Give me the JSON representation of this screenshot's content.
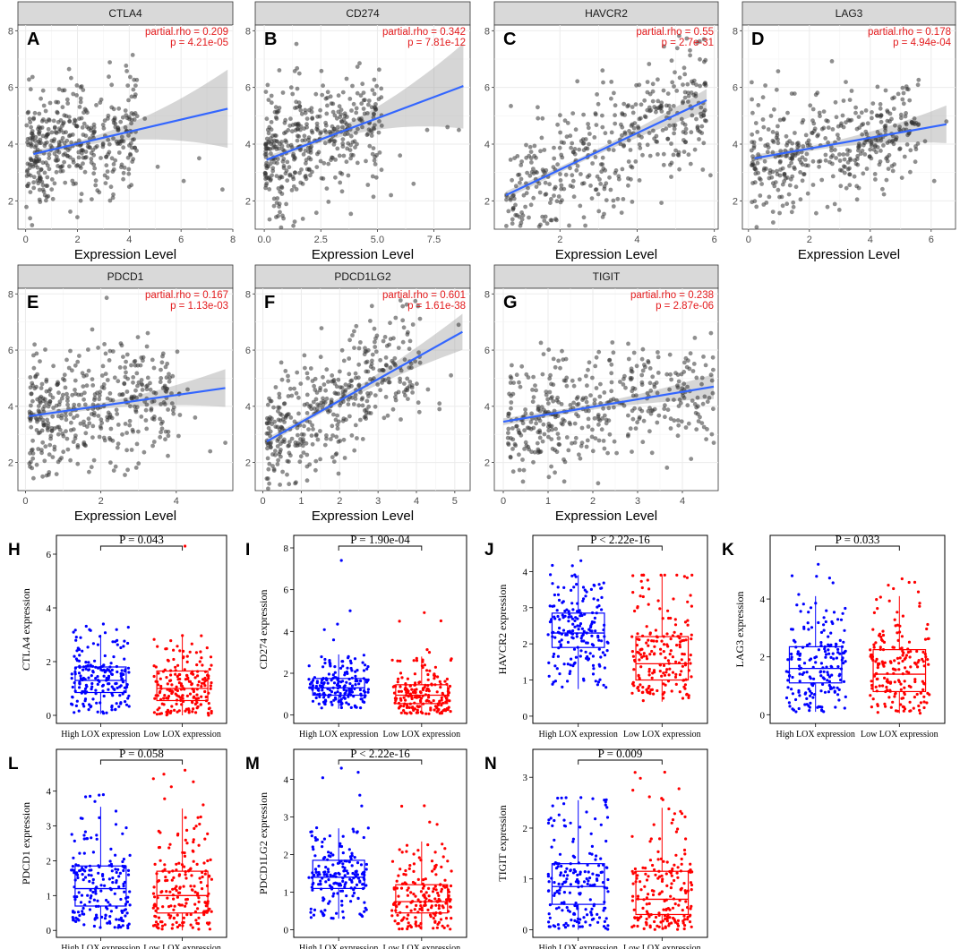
{
  "scatter_layout": {
    "x_axis_label": "Expression Level",
    "y_ticks": [
      2,
      4,
      6,
      8
    ],
    "y_range": [
      1,
      8.2
    ]
  },
  "box_layout": {
    "categories": [
      "High LOX expression",
      "Low LOX expression"
    ],
    "colors": {
      "high": "#0000ff",
      "low": "#ff0000",
      "fit": "#3366ff",
      "stat": "#e31a1c"
    }
  },
  "chart_data": [
    {
      "type": "scatter",
      "letter": "A",
      "gene": "CTLA4",
      "rho_text": "partial.rho = 0.209",
      "p_text": "p = 4.21e-05",
      "xticks": [
        0,
        2,
        4,
        6,
        8
      ],
      "xlim": [
        -0.3,
        8.0
      ],
      "fit": [
        [
          0.3,
          3.65
        ],
        [
          7.8,
          5.25
        ]
      ],
      "data_xmax": 4.3,
      "outliers": [
        [
          5.1,
          3.2
        ],
        [
          6.1,
          2.7
        ],
        [
          6.7,
          3.5
        ],
        [
          7.6,
          2.4
        ],
        [
          4.6,
          4.9
        ]
      ]
    },
    {
      "type": "scatter",
      "letter": "B",
      "gene": "CD274",
      "rho_text": "partial.rho = 0.342",
      "p_text": "p = 7.81e-12",
      "xticks": [
        0.0,
        2.5,
        5.0,
        7.5
      ],
      "xticklabels": [
        "0.0",
        "2.5",
        "5.0",
        "7.5"
      ],
      "xlim": [
        -0.4,
        9.1
      ],
      "fit": [
        [
          0.1,
          3.45
        ],
        [
          8.8,
          6.05
        ]
      ],
      "data_xmax": 5.2,
      "outliers": [
        [
          6.0,
          3.6
        ],
        [
          6.6,
          2.6
        ],
        [
          7.2,
          4.5
        ],
        [
          8.1,
          4.6
        ],
        [
          8.6,
          4.5
        ],
        [
          5.6,
          2.2
        ]
      ]
    },
    {
      "type": "scatter",
      "letter": "C",
      "gene": "HAVCR2",
      "rho_text": "partial.rho = 0.55",
      "p_text": "p = 2.7e-31",
      "xticks": [
        2,
        4,
        6
      ],
      "xlim": [
        0.3,
        6.1
      ],
      "fit": [
        [
          0.6,
          2.2
        ],
        [
          5.8,
          5.55
        ]
      ],
      "data_xmax": 5.8,
      "outliers": [
        [
          5.9,
          2.9
        ],
        [
          5.7,
          3.1
        ]
      ]
    },
    {
      "type": "scatter",
      "letter": "D",
      "gene": "LAG3",
      "rho_text": "partial.rho = 0.178",
      "p_text": "p = 4.94e-04",
      "xticks": [
        0,
        2,
        4,
        6
      ],
      "xlim": [
        -0.2,
        6.8
      ],
      "fit": [
        [
          0.2,
          3.5
        ],
        [
          6.5,
          4.7
        ]
      ],
      "data_xmax": 5.5,
      "outliers": [
        [
          6.1,
          2.7
        ],
        [
          5.8,
          4.1
        ],
        [
          6.5,
          4.8
        ]
      ]
    },
    {
      "type": "scatter",
      "letter": "E",
      "gene": "PDCD1",
      "rho_text": "partial.rho = 0.167",
      "p_text": "p = 1.13e-03",
      "xticks": [
        0,
        2,
        4
      ],
      "xlim": [
        -0.2,
        5.5
      ],
      "fit": [
        [
          0.1,
          3.65
        ],
        [
          5.3,
          4.65
        ]
      ],
      "data_xmax": 4.0,
      "outliers": [
        [
          4.5,
          3.6
        ],
        [
          4.9,
          2.4
        ],
        [
          5.3,
          2.7
        ],
        [
          4.3,
          4.6
        ]
      ]
    },
    {
      "type": "scatter",
      "letter": "F",
      "gene": "PDCD1LG2",
      "rho_text": "partial.rho = 0.601",
      "p_text": "p = 1.61e-38",
      "xticks": [
        0,
        1,
        2,
        3,
        4,
        5
      ],
      "xlim": [
        -0.2,
        5.4
      ],
      "fit": [
        [
          0.1,
          2.75
        ],
        [
          5.2,
          6.65
        ]
      ],
      "data_xmax": 4.0,
      "outliers": [
        [
          4.3,
          4.6
        ],
        [
          4.6,
          4.1
        ],
        [
          4.9,
          5.1
        ],
        [
          5.1,
          6.9
        ],
        [
          4.6,
          3.9
        ]
      ]
    },
    {
      "type": "scatter",
      "letter": "G",
      "gene": "TIGIT",
      "rho_text": "partial.rho = 0.238",
      "p_text": "p = 2.87e-06",
      "xticks": [
        0,
        1,
        2,
        3,
        4
      ],
      "xlim": [
        -0.2,
        4.8
      ],
      "fit": [
        [
          0.0,
          3.45
        ],
        [
          4.7,
          4.7
        ]
      ],
      "data_xmax": 4.6,
      "outliers": [
        [
          4.7,
          2.7
        ],
        [
          4.6,
          4.3
        ]
      ]
    },
    {
      "type": "box",
      "letter": "H",
      "ylabel": "CTLA4 expression",
      "p_text": "P = 0.043",
      "yticks": [
        0,
        2,
        4,
        6
      ],
      "ylim": [
        -0.3,
        6.7
      ],
      "high": {
        "q1": 0.85,
        "median": 1.3,
        "q3": 1.8,
        "lo": 0.05,
        "hi": 3.0,
        "max": 3.4
      },
      "low": {
        "q1": 0.55,
        "median": 1.0,
        "q3": 1.65,
        "lo": 0.0,
        "hi": 3.0,
        "max": 6.3
      }
    },
    {
      "type": "box",
      "letter": "I",
      "ylabel": "CD274 expression",
      "p_text": "P = 1.90e-04",
      "yticks": [
        0,
        2,
        4,
        6,
        8
      ],
      "ylim": [
        -0.4,
        8.6
      ],
      "high": {
        "q1": 0.95,
        "median": 1.3,
        "q3": 1.75,
        "lo": 0.3,
        "hi": 2.9,
        "max": 7.4
      },
      "low": {
        "q1": 0.55,
        "median": 0.95,
        "q3": 1.45,
        "lo": 0.05,
        "hi": 2.8,
        "max": 4.9
      }
    },
    {
      "type": "box",
      "letter": "J",
      "ylabel": "HAVCR2 expression",
      "p_text": "P < 2.22e-16",
      "yticks": [
        0,
        1,
        2,
        3,
        4
      ],
      "ylim": [
        -0.2,
        5.0
      ],
      "high": {
        "q1": 1.9,
        "median": 2.3,
        "q3": 2.85,
        "lo": 0.75,
        "hi": 3.9,
        "max": 4.3
      },
      "low": {
        "q1": 1.0,
        "median": 1.45,
        "q3": 2.2,
        "lo": 0.4,
        "hi": 3.9,
        "max": 3.9
      }
    },
    {
      "type": "box",
      "letter": "K",
      "ylabel": "LAG3 expression",
      "p_text": "P = 0.033",
      "yticks": [
        0,
        2,
        4
      ],
      "ylim": [
        -0.3,
        6.2
      ],
      "high": {
        "q1": 1.1,
        "median": 1.6,
        "q3": 2.35,
        "lo": 0.1,
        "hi": 4.1,
        "max": 5.2
      },
      "low": {
        "q1": 0.8,
        "median": 1.4,
        "q3": 2.25,
        "lo": 0.05,
        "hi": 4.1,
        "max": 4.7
      }
    },
    {
      "type": "box",
      "letter": "L",
      "ylabel": "PDCD1 expression",
      "p_text": "P = 0.058",
      "yticks": [
        0,
        1,
        2,
        3,
        4
      ],
      "ylim": [
        -0.2,
        5.2
      ],
      "high": {
        "q1": 0.7,
        "median": 1.2,
        "q3": 1.85,
        "lo": 0.05,
        "hi": 3.55,
        "max": 3.9
      },
      "low": {
        "q1": 0.5,
        "median": 1.0,
        "q3": 1.7,
        "lo": 0.0,
        "hi": 3.5,
        "max": 4.6
      }
    },
    {
      "type": "box",
      "letter": "M",
      "ylabel": "PDCD1LG2 expression",
      "p_text": "P < 2.22e-16",
      "yticks": [
        0,
        1,
        2,
        3,
        4
      ],
      "ylim": [
        -0.2,
        4.8
      ],
      "high": {
        "q1": 1.1,
        "median": 1.4,
        "q3": 1.85,
        "lo": 0.3,
        "hi": 2.7,
        "max": 4.3
      },
      "low": {
        "q1": 0.45,
        "median": 0.75,
        "q3": 1.2,
        "lo": 0.0,
        "hi": 2.35,
        "max": 3.3
      }
    },
    {
      "type": "box",
      "letter": "N",
      "ylabel": "TIGIT expression",
      "p_text": "P = 0.009",
      "yticks": [
        0,
        1,
        2,
        3
      ],
      "ylim": [
        -0.15,
        3.55
      ],
      "high": {
        "q1": 0.5,
        "median": 0.85,
        "q3": 1.3,
        "lo": 0.0,
        "hi": 2.55,
        "max": 2.6
      },
      "low": {
        "q1": 0.3,
        "median": 0.6,
        "q3": 1.15,
        "lo": 0.0,
        "hi": 2.4,
        "max": 3.1
      }
    }
  ]
}
